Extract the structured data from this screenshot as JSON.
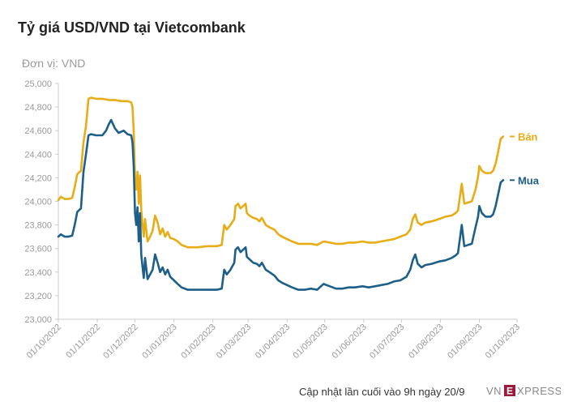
{
  "title": "Tỷ giá USD/VND tại Vietcombank",
  "unit_label": "Đơn vị: VND",
  "footer_text": "Cập nhật lần cuối vào 9h ngày 20/9",
  "brand": {
    "text": "VNEXPRESS",
    "color": "#9b1c3a"
  },
  "colors": {
    "ban": "#e8ad16",
    "mua": "#1d5f89",
    "axis": "#cccccc",
    "text_muted": "#999999"
  },
  "chart_data": {
    "type": "line",
    "title": "Tỷ giá USD/VND tại Vietcombank",
    "ylabel": "Đơn vị: VND",
    "xlabel": "",
    "ylim": [
      23000,
      25000
    ],
    "xlim": [
      "2022-10-01",
      "2023-10-01"
    ],
    "grid": false,
    "legend": "inline-right",
    "y_ticks": [
      "23,000",
      "23,200",
      "23,400",
      "23,600",
      "23,800",
      "24,000",
      "24,200",
      "24,400",
      "24,600",
      "24,800",
      "25,000"
    ],
    "y_tick_values": [
      23000,
      23200,
      23400,
      23600,
      23800,
      24000,
      24200,
      24400,
      24600,
      24800,
      25000
    ],
    "x_ticks": [
      "01/10/2022",
      "01/11/2022",
      "01/12/2022",
      "01/01/2023",
      "01/02/2023",
      "01/03/2023",
      "01/04/2023",
      "01/05/2023",
      "01/06/2023",
      "01/07/2023",
      "01/08/2023",
      "01/09/2023",
      "01/10/2023"
    ],
    "x_tick_dates": [
      "2022-10-01",
      "2022-11-01",
      "2022-12-01",
      "2023-01-01",
      "2023-02-01",
      "2023-03-01",
      "2023-04-01",
      "2023-05-01",
      "2023-06-01",
      "2023-07-01",
      "2023-08-01",
      "2023-09-01",
      "2023-10-01"
    ],
    "series": [
      {
        "name": "Bán",
        "color": "#e8ad16",
        "points": [
          [
            "2022-10-01",
            24010
          ],
          [
            "2022-10-03",
            24040
          ],
          [
            "2022-10-06",
            24020
          ],
          [
            "2022-10-09",
            24020
          ],
          [
            "2022-10-12",
            24030
          ],
          [
            "2022-10-14",
            24120
          ],
          [
            "2022-10-16",
            24230
          ],
          [
            "2022-10-19",
            24260
          ],
          [
            "2022-10-21",
            24500
          ],
          [
            "2022-10-23",
            24640
          ],
          [
            "2022-10-25",
            24870
          ],
          [
            "2022-10-27",
            24880
          ],
          [
            "2022-10-31",
            24870
          ],
          [
            "2022-11-05",
            24870
          ],
          [
            "2022-11-10",
            24860
          ],
          [
            "2022-11-15",
            24860
          ],
          [
            "2022-11-20",
            24850
          ],
          [
            "2022-11-25",
            24850
          ],
          [
            "2022-11-28",
            24840
          ],
          [
            "2022-11-29",
            24800
          ],
          [
            "2022-11-30",
            24600
          ],
          [
            "2022-12-01",
            24200
          ],
          [
            "2022-12-02",
            24100
          ],
          [
            "2022-12-03",
            24250
          ],
          [
            "2022-12-04",
            23980
          ],
          [
            "2022-12-05",
            24220
          ],
          [
            "2022-12-06",
            23930
          ],
          [
            "2022-12-07",
            23800
          ],
          [
            "2022-12-08",
            23700
          ],
          [
            "2022-12-09",
            23850
          ],
          [
            "2022-12-11",
            23660
          ],
          [
            "2022-12-13",
            23700
          ],
          [
            "2022-12-15",
            23750
          ],
          [
            "2022-12-17",
            23880
          ],
          [
            "2022-12-19",
            23820
          ],
          [
            "2022-12-21",
            23720
          ],
          [
            "2022-12-23",
            23770
          ],
          [
            "2022-12-25",
            23700
          ],
          [
            "2022-12-27",
            23740
          ],
          [
            "2022-12-29",
            23690
          ],
          [
            "2023-01-01",
            23680
          ],
          [
            "2023-01-04",
            23660
          ],
          [
            "2023-01-07",
            23630
          ],
          [
            "2023-01-12",
            23610
          ],
          [
            "2023-01-20",
            23610
          ],
          [
            "2023-01-28",
            23620
          ],
          [
            "2023-02-04",
            23620
          ],
          [
            "2023-02-08",
            23630
          ],
          [
            "2023-02-10",
            23800
          ],
          [
            "2023-02-12",
            23760
          ],
          [
            "2023-02-15",
            23800
          ],
          [
            "2023-02-18",
            23850
          ],
          [
            "2023-02-19",
            23960
          ],
          [
            "2023-02-21",
            23980
          ],
          [
            "2023-02-23",
            23940
          ],
          [
            "2023-02-25",
            23960
          ],
          [
            "2023-02-27",
            23980
          ],
          [
            "2023-02-28",
            23900
          ],
          [
            "2023-03-02",
            23880
          ],
          [
            "2023-03-05",
            23860
          ],
          [
            "2023-03-08",
            23850
          ],
          [
            "2023-03-10",
            23830
          ],
          [
            "2023-03-12",
            23860
          ],
          [
            "2023-03-15",
            23800
          ],
          [
            "2023-03-18",
            23780
          ],
          [
            "2023-03-22",
            23760
          ],
          [
            "2023-03-25",
            23720
          ],
          [
            "2023-03-28",
            23700
          ],
          [
            "2023-04-01",
            23680
          ],
          [
            "2023-04-05",
            23660
          ],
          [
            "2023-04-10",
            23640
          ],
          [
            "2023-04-15",
            23640
          ],
          [
            "2023-04-20",
            23640
          ],
          [
            "2023-04-25",
            23630
          ],
          [
            "2023-04-30",
            23660
          ],
          [
            "2023-05-05",
            23650
          ],
          [
            "2023-05-10",
            23640
          ],
          [
            "2023-05-15",
            23640
          ],
          [
            "2023-05-20",
            23650
          ],
          [
            "2023-05-25",
            23650
          ],
          [
            "2023-05-31",
            23660
          ],
          [
            "2023-06-05",
            23650
          ],
          [
            "2023-06-10",
            23650
          ],
          [
            "2023-06-15",
            23660
          ],
          [
            "2023-06-20",
            23670
          ],
          [
            "2023-06-25",
            23680
          ],
          [
            "2023-06-30",
            23700
          ],
          [
            "2023-07-05",
            23720
          ],
          [
            "2023-07-08",
            23760
          ],
          [
            "2023-07-10",
            23850
          ],
          [
            "2023-07-12",
            23890
          ],
          [
            "2023-07-14",
            23820
          ],
          [
            "2023-07-17",
            23800
          ],
          [
            "2023-07-20",
            23820
          ],
          [
            "2023-07-25",
            23830
          ],
          [
            "2023-07-31",
            23850
          ],
          [
            "2023-08-05",
            23870
          ],
          [
            "2023-08-10",
            23880
          ],
          [
            "2023-08-13",
            23900
          ],
          [
            "2023-08-15",
            23920
          ],
          [
            "2023-08-18",
            24150
          ],
          [
            "2023-08-20",
            23980
          ],
          [
            "2023-08-23",
            23990
          ],
          [
            "2023-08-26",
            24000
          ],
          [
            "2023-08-29",
            24100
          ],
          [
            "2023-08-31",
            24210
          ],
          [
            "2023-09-01",
            24300
          ],
          [
            "2023-09-03",
            24260
          ],
          [
            "2023-09-06",
            24240
          ],
          [
            "2023-09-10",
            24240
          ],
          [
            "2023-09-12",
            24260
          ],
          [
            "2023-09-14",
            24320
          ],
          [
            "2023-09-16",
            24420
          ],
          [
            "2023-09-18",
            24530
          ],
          [
            "2023-09-20",
            24550
          ]
        ]
      },
      {
        "name": "Mua",
        "color": "#1d5f89",
        "points": [
          [
            "2022-10-01",
            23700
          ],
          [
            "2022-10-03",
            23720
          ],
          [
            "2022-10-06",
            23700
          ],
          [
            "2022-10-09",
            23700
          ],
          [
            "2022-10-12",
            23710
          ],
          [
            "2022-10-14",
            23800
          ],
          [
            "2022-10-16",
            23910
          ],
          [
            "2022-10-19",
            23940
          ],
          [
            "2022-10-21",
            24250
          ],
          [
            "2022-10-23",
            24400
          ],
          [
            "2022-10-25",
            24560
          ],
          [
            "2022-10-27",
            24570
          ],
          [
            "2022-10-31",
            24560
          ],
          [
            "2022-11-05",
            24560
          ],
          [
            "2022-11-08",
            24600
          ],
          [
            "2022-11-10",
            24650
          ],
          [
            "2022-11-12",
            24690
          ],
          [
            "2022-11-15",
            24620
          ],
          [
            "2022-11-18",
            24580
          ],
          [
            "2022-11-22",
            24600
          ],
          [
            "2022-11-25",
            24570
          ],
          [
            "2022-11-28",
            24560
          ],
          [
            "2022-11-29",
            24500
          ],
          [
            "2022-11-30",
            24300
          ],
          [
            "2022-12-01",
            23900
          ],
          [
            "2022-12-02",
            23800
          ],
          [
            "2022-12-03",
            23950
          ],
          [
            "2022-12-04",
            23660
          ],
          [
            "2022-12-05",
            23900
          ],
          [
            "2022-12-06",
            23550
          ],
          [
            "2022-12-07",
            23440
          ],
          [
            "2022-12-08",
            23350
          ],
          [
            "2022-12-09",
            23520
          ],
          [
            "2022-12-11",
            23340
          ],
          [
            "2022-12-13",
            23380
          ],
          [
            "2022-12-15",
            23420
          ],
          [
            "2022-12-17",
            23550
          ],
          [
            "2022-12-19",
            23480
          ],
          [
            "2022-12-21",
            23400
          ],
          [
            "2022-12-23",
            23440
          ],
          [
            "2022-12-25",
            23380
          ],
          [
            "2022-12-27",
            23420
          ],
          [
            "2022-12-29",
            23360
          ],
          [
            "2023-01-01",
            23330
          ],
          [
            "2023-01-04",
            23300
          ],
          [
            "2023-01-07",
            23270
          ],
          [
            "2023-01-12",
            23250
          ],
          [
            "2023-01-20",
            23250
          ],
          [
            "2023-01-28",
            23250
          ],
          [
            "2023-02-04",
            23250
          ],
          [
            "2023-02-08",
            23260
          ],
          [
            "2023-02-10",
            23420
          ],
          [
            "2023-02-12",
            23380
          ],
          [
            "2023-02-15",
            23420
          ],
          [
            "2023-02-18",
            23480
          ],
          [
            "2023-02-19",
            23590
          ],
          [
            "2023-02-21",
            23610
          ],
          [
            "2023-02-23",
            23570
          ],
          [
            "2023-02-25",
            23590
          ],
          [
            "2023-02-27",
            23610
          ],
          [
            "2023-02-28",
            23530
          ],
          [
            "2023-03-02",
            23510
          ],
          [
            "2023-03-05",
            23480
          ],
          [
            "2023-03-08",
            23470
          ],
          [
            "2023-03-10",
            23450
          ],
          [
            "2023-03-12",
            23480
          ],
          [
            "2023-03-15",
            23420
          ],
          [
            "2023-03-18",
            23400
          ],
          [
            "2023-03-22",
            23370
          ],
          [
            "2023-03-25",
            23330
          ],
          [
            "2023-03-28",
            23310
          ],
          [
            "2023-04-01",
            23290
          ],
          [
            "2023-04-05",
            23270
          ],
          [
            "2023-04-10",
            23250
          ],
          [
            "2023-04-15",
            23250
          ],
          [
            "2023-04-20",
            23260
          ],
          [
            "2023-04-25",
            23250
          ],
          [
            "2023-04-30",
            23300
          ],
          [
            "2023-05-05",
            23280
          ],
          [
            "2023-05-10",
            23260
          ],
          [
            "2023-05-15",
            23260
          ],
          [
            "2023-05-20",
            23270
          ],
          [
            "2023-05-25",
            23270
          ],
          [
            "2023-05-31",
            23280
          ],
          [
            "2023-06-05",
            23270
          ],
          [
            "2023-06-10",
            23280
          ],
          [
            "2023-06-15",
            23290
          ],
          [
            "2023-06-20",
            23300
          ],
          [
            "2023-06-25",
            23320
          ],
          [
            "2023-06-30",
            23330
          ],
          [
            "2023-07-05",
            23360
          ],
          [
            "2023-07-08",
            23420
          ],
          [
            "2023-07-10",
            23500
          ],
          [
            "2023-07-12",
            23550
          ],
          [
            "2023-07-14",
            23470
          ],
          [
            "2023-07-17",
            23440
          ],
          [
            "2023-07-20",
            23460
          ],
          [
            "2023-07-25",
            23470
          ],
          [
            "2023-07-31",
            23490
          ],
          [
            "2023-08-05",
            23500
          ],
          [
            "2023-08-10",
            23520
          ],
          [
            "2023-08-13",
            23540
          ],
          [
            "2023-08-15",
            23560
          ],
          [
            "2023-08-18",
            23800
          ],
          [
            "2023-08-20",
            23620
          ],
          [
            "2023-08-23",
            23630
          ],
          [
            "2023-08-26",
            23640
          ],
          [
            "2023-08-29",
            23780
          ],
          [
            "2023-08-31",
            23870
          ],
          [
            "2023-09-01",
            23960
          ],
          [
            "2023-09-03",
            23900
          ],
          [
            "2023-09-06",
            23870
          ],
          [
            "2023-09-10",
            23870
          ],
          [
            "2023-09-12",
            23890
          ],
          [
            "2023-09-14",
            23960
          ],
          [
            "2023-09-16",
            24060
          ],
          [
            "2023-09-18",
            24160
          ],
          [
            "2023-09-20",
            24180
          ]
        ]
      }
    ]
  }
}
